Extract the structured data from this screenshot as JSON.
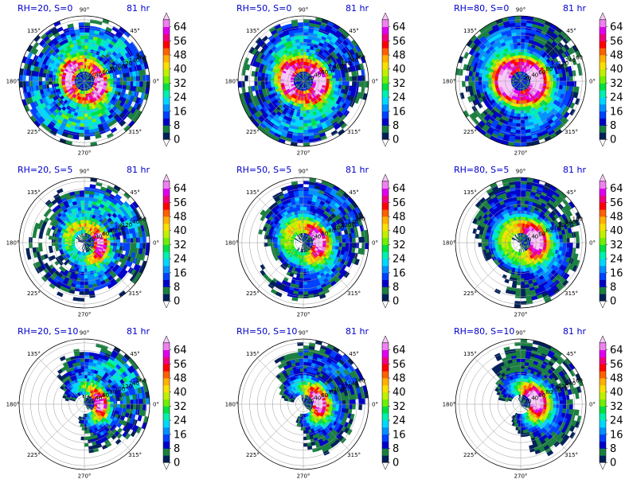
{
  "chart_data": {
    "type": "polar-contour",
    "time_label": "81 hr",
    "colorbar": {
      "ticks": [
        "0",
        "8",
        "16",
        "24",
        "32",
        "40",
        "48",
        "56",
        "64"
      ],
      "levels": [
        0,
        4,
        8,
        12,
        16,
        20,
        24,
        28,
        32,
        36,
        40,
        44,
        48,
        52,
        56,
        60,
        64,
        68
      ],
      "colors": [
        "#00205a",
        "#1a8040",
        "#0000c8",
        "#0040ff",
        "#0090ff",
        "#00d8ff",
        "#00f0b0",
        "#00e040",
        "#70f000",
        "#c0f000",
        "#f8e000",
        "#ffb000",
        "#ff6000",
        "#ff0000",
        "#f00080",
        "#e000f0",
        "#f080f0",
        "#f8c8f8"
      ]
    },
    "angle_labels": [
      "90°",
      "45°",
      "0°",
      "315°",
      "270°",
      "225°",
      "180°",
      "135°"
    ],
    "radial_labels": [
      "20",
      "40",
      "60",
      "80",
      "100",
      "120",
      "140",
      "160"
    ],
    "panels": [
      {
        "title": "RH=20, S=0",
        "rh": 20,
        "s": 0
      },
      {
        "title": "RH=50, S=0",
        "rh": 50,
        "s": 0
      },
      {
        "title": "RH=80, S=0",
        "rh": 80,
        "s": 0
      },
      {
        "title": "RH=20, S=5",
        "rh": 20,
        "s": 5
      },
      {
        "title": "RH=50, S=5",
        "rh": 50,
        "s": 5
      },
      {
        "title": "RH=80, S=5",
        "rh": 80,
        "s": 5
      },
      {
        "title": "RH=20, S=10",
        "rh": 20,
        "s": 10
      },
      {
        "title": "RH=50, S=10",
        "rh": 50,
        "s": 10
      },
      {
        "title": "RH=80, S=10",
        "rh": 80,
        "s": 10
      }
    ]
  }
}
